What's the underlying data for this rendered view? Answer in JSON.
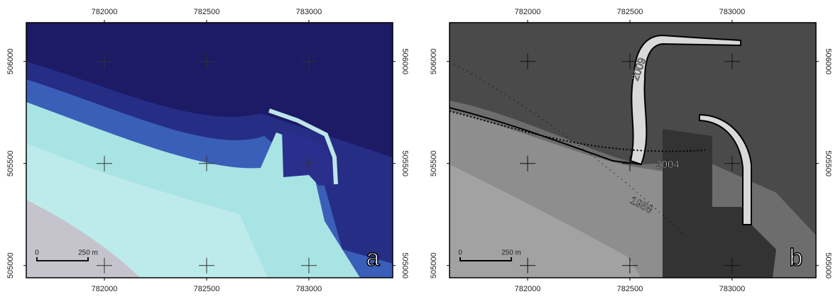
{
  "panels": [
    {
      "label": "a",
      "xlim": [
        781618,
        783410
      ],
      "ylim": [
        504940,
        506190
      ],
      "xticks": [
        782000,
        782500,
        783000
      ],
      "yticks": [
        505000,
        505500,
        506000
      ],
      "scale_bar": {
        "start": "0",
        "end": "250 m"
      }
    },
    {
      "label": "b",
      "xlim": [
        781618,
        783410
      ],
      "ylim": [
        504940,
        506190
      ],
      "xticks": [
        782000,
        782500,
        783000
      ],
      "yticks": [
        505000,
        505500,
        506000
      ],
      "scale_bar": {
        "start": "0",
        "end": "250 m"
      },
      "annotations": [
        "2009",
        "2004",
        "1958"
      ]
    }
  ]
}
